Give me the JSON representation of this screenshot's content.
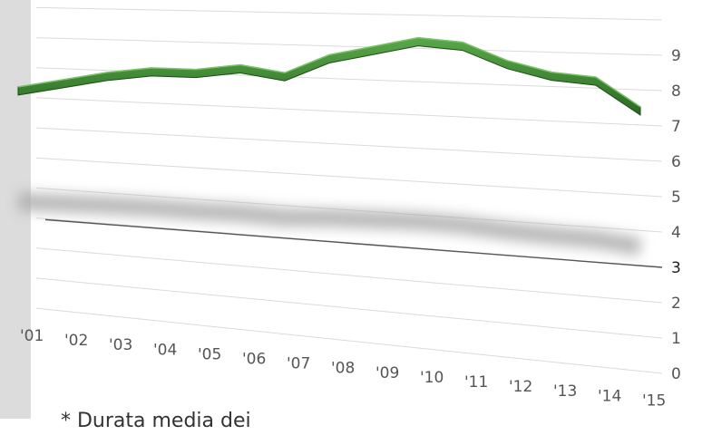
{
  "chart_data": {
    "type": "line",
    "title": "",
    "xlabel": "",
    "ylabel": "",
    "categories": [
      "'01",
      "'02",
      "'03",
      "'04",
      "'05",
      "'06",
      "'07",
      "'08",
      "'09",
      "'10",
      "'11",
      "'12",
      "'13",
      "'14",
      "'15"
    ],
    "y_ticks": [
      "0",
      "1",
      "2",
      "3",
      "4",
      "5",
      "6",
      "7",
      "8",
      "9"
    ],
    "ylim": [
      0,
      10
    ],
    "grid": true,
    "series": [
      {
        "values": [
          7.2,
          7.5,
          7.8,
          8.0,
          8.0,
          8.2,
          8.0,
          8.6,
          8.9,
          9.2,
          9.1,
          8.6,
          8.3,
          8.2,
          7.4
        ],
        "color": "#3f8a32"
      }
    ],
    "reference_line": {
      "value": 3,
      "color": "#555555"
    }
  },
  "footnote": "* Durata media dei"
}
